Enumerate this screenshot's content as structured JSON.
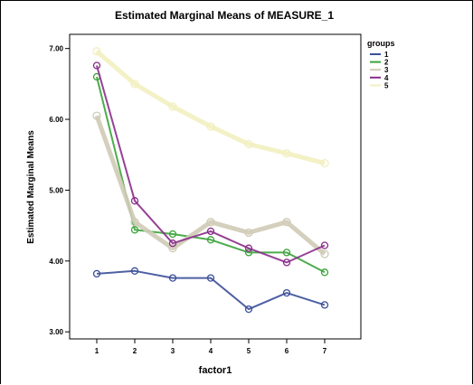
{
  "chart_data": {
    "type": "line",
    "title": "Estimated Marginal Means of MEASURE_1",
    "xlabel": "factor1",
    "ylabel": "Estimated Marginal Means",
    "categories": [
      "1",
      "2",
      "3",
      "4",
      "5",
      "6",
      "7"
    ],
    "yticks": [
      "3.00",
      "4.00",
      "5.00",
      "6.00",
      "7.00"
    ],
    "ylim": [
      2.9,
      7.2
    ],
    "grid": false,
    "legend_title": "groups",
    "legend_position": "top-right",
    "series": [
      {
        "name": "1",
        "color": "#3b4f9a",
        "values": [
          3.82,
          3.86,
          3.76,
          3.76,
          3.32,
          3.55,
          3.38
        ]
      },
      {
        "name": "2",
        "color": "#3aa33a",
        "values": [
          6.6,
          4.44,
          4.38,
          4.3,
          4.12,
          4.12,
          3.84
        ]
      },
      {
        "name": "3",
        "color": "#cfcbb6",
        "values": [
          6.05,
          4.55,
          4.18,
          4.55,
          4.4,
          4.55,
          4.1
        ]
      },
      {
        "name": "4",
        "color": "#8a2d8a",
        "values": [
          6.76,
          4.85,
          4.25,
          4.42,
          4.18,
          3.98,
          4.22
        ]
      },
      {
        "name": "5",
        "color": "#f2efc0",
        "values": [
          6.96,
          6.5,
          6.18,
          5.9,
          5.65,
          5.52,
          5.38
        ]
      }
    ]
  }
}
